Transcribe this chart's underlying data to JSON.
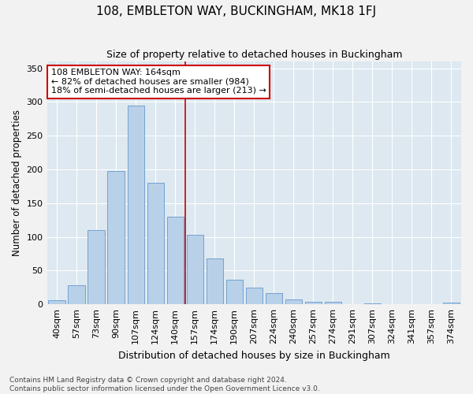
{
  "title": "108, EMBLETON WAY, BUCKINGHAM, MK18 1FJ",
  "subtitle": "Size of property relative to detached houses in Buckingham",
  "xlabel": "Distribution of detached houses by size in Buckingham",
  "ylabel": "Number of detached properties",
  "footer_line1": "Contains HM Land Registry data © Crown copyright and database right 2024.",
  "footer_line2": "Contains public sector information licensed under the Open Government Licence v3.0.",
  "categories": [
    "40sqm",
    "57sqm",
    "73sqm",
    "90sqm",
    "107sqm",
    "124sqm",
    "140sqm",
    "157sqm",
    "174sqm",
    "190sqm",
    "207sqm",
    "224sqm",
    "240sqm",
    "257sqm",
    "274sqm",
    "291sqm",
    "307sqm",
    "324sqm",
    "341sqm",
    "357sqm",
    "374sqm"
  ],
  "values": [
    6,
    28,
    110,
    198,
    295,
    180,
    130,
    103,
    68,
    36,
    25,
    16,
    7,
    4,
    4,
    0,
    1,
    0,
    0,
    0,
    2
  ],
  "bar_color": "#b8d0e8",
  "bar_edge_color": "#6699cc",
  "fig_background": "#f2f2f2",
  "plot_background": "#dde8f0",
  "grid_color": "#ffffff",
  "annotation_line1": "108 EMBLETON WAY: 164sqm",
  "annotation_line2": "← 82% of detached houses are smaller (984)",
  "annotation_line3": "18% of semi-detached houses are larger (213) →",
  "annotation_box_facecolor": "#ffffff",
  "annotation_box_edgecolor": "#cc0000",
  "vline_color": "#cc0000",
  "vline_xindex": 6.5,
  "ylim": [
    0,
    360
  ],
  "yticks": [
    0,
    50,
    100,
    150,
    200,
    250,
    300,
    350
  ],
  "title_fontsize": 11,
  "subtitle_fontsize": 9,
  "ylabel_fontsize": 8.5,
  "xlabel_fontsize": 9,
  "tick_fontsize": 8,
  "footer_fontsize": 6.5
}
